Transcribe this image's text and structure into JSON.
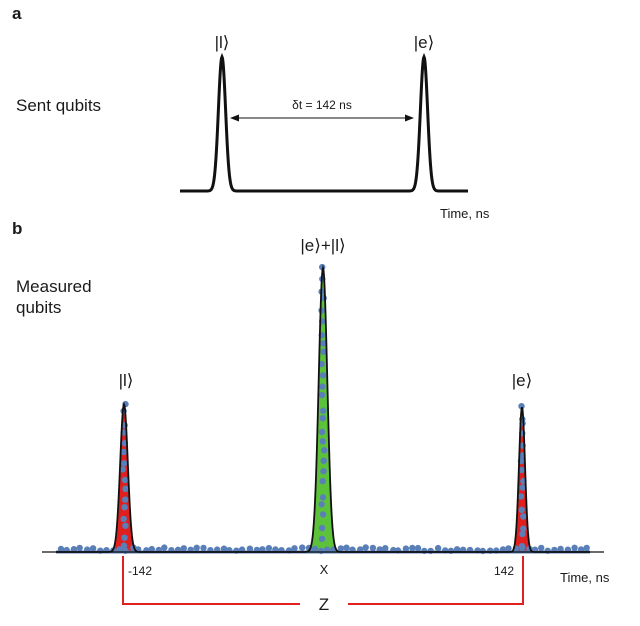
{
  "panel_a": {
    "label": "a",
    "side_label": "Sent qubits",
    "left_peak_label": "|l⟩",
    "right_peak_label": "|e⟩",
    "delay_label": "δt = 142 ns",
    "time_axis_label": "Time, ns"
  },
  "panel_b": {
    "label": "b",
    "side_label_line1": "Measured",
    "side_label_line2": "qubits",
    "left_peak_label": "|l⟩",
    "center_peak_label": "|e⟩+|l⟩",
    "right_peak_label": "|e⟩",
    "tick_left": "-142",
    "tick_center": "X",
    "tick_right": "142",
    "time_axis_label": "Time, ns",
    "bracket_label": "Z"
  },
  "colors": {
    "trace": "#111111",
    "side_peak_fill": "#e0201f",
    "center_peak_fill": "#5cc23a",
    "data_points": "#5a7fb8",
    "bracket": "#e0201f"
  },
  "chart_data": {
    "type": "scatter",
    "title": "",
    "xlabel": "Time, ns",
    "ylabel": "",
    "x_ticks": [
      "-142",
      "X",
      "142"
    ],
    "series": [
      {
        "name": "Sent qubits (panel a)",
        "peaks": [
          {
            "label": "|l⟩",
            "time_ns": -142,
            "relative_height": 1.0
          },
          {
            "label": "|e⟩",
            "time_ns": 0,
            "relative_height": 1.0
          }
        ],
        "separation_ns": 142
      },
      {
        "name": "Measured qubits (panel b)",
        "peaks": [
          {
            "label": "|l⟩",
            "time_ns": -142,
            "relative_height": 0.52
          },
          {
            "label": "|e⟩+|l⟩",
            "time_ns": 0,
            "relative_height": 1.0
          },
          {
            "label": "|e⟩",
            "time_ns": 142,
            "relative_height": 0.51
          }
        ]
      }
    ]
  }
}
